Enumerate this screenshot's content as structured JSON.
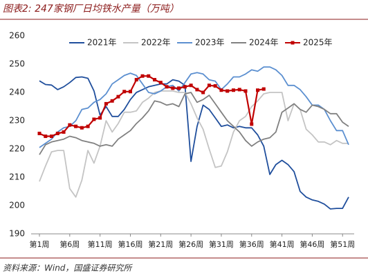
{
  "chart_data": {
    "type": "line",
    "title": "图表2: 247家钢厂日均铁水产量（万吨）",
    "source": "资料来源：Wind，国盛证券研究所",
    "categories": [
      "第1周",
      null,
      null,
      null,
      null,
      "第6周",
      null,
      null,
      null,
      null,
      "第11周",
      null,
      null,
      null,
      null,
      "第16周",
      null,
      null,
      null,
      null,
      "第21周",
      null,
      null,
      null,
      null,
      "第26周",
      null,
      null,
      null,
      null,
      "第31周",
      null,
      null,
      null,
      null,
      "第36周",
      null,
      null,
      null,
      null,
      "第41周",
      null,
      null,
      null,
      null,
      "第46周",
      null,
      null,
      null,
      null,
      "第51周",
      null
    ],
    "ylim": [
      190,
      260
    ],
    "yticks": [
      190,
      200,
      210,
      220,
      230,
      240,
      250,
      260
    ],
    "legend": "top",
    "series": [
      {
        "name": "2021年",
        "color": "#1f4e9c",
        "values": [
          244.1,
          242.8,
          242.6,
          241,
          242,
          243.5,
          245.3,
          245.5,
          245,
          240.5,
          232,
          235,
          231.5,
          231.5,
          234,
          237.5,
          240,
          241,
          242,
          242.5,
          243,
          243,
          244.5,
          244,
          242.5,
          215.6,
          228,
          235.5,
          234,
          231,
          228,
          228.5,
          227.5,
          228,
          227.5,
          227.5,
          225,
          221,
          211,
          214.5,
          216,
          214.5,
          212,
          205,
          203,
          202,
          201.5,
          200.5,
          198.8,
          199,
          199,
          203
        ]
      },
      {
        "name": "2022年",
        "color": "#c4c4c4",
        "values": [
          208.5,
          214,
          219,
          219.5,
          219.5,
          206,
          203,
          209,
          219.5,
          215,
          221,
          230,
          226,
          229,
          233,
          233,
          233.5,
          236.5,
          238,
          240,
          240.5,
          240.5,
          240.5,
          240,
          240,
          236,
          231,
          227,
          220,
          213.5,
          214,
          219,
          226,
          230,
          231.5,
          235,
          237,
          239.5,
          240,
          240,
          240,
          230,
          236,
          234,
          227,
          225,
          222.5,
          222.5,
          221.5,
          223,
          222,
          222
        ]
      },
      {
        "name": "2023年",
        "color": "#5b8fd0",
        "values": [
          220.5,
          222,
          223.5,
          226,
          227.5,
          228,
          230,
          234,
          234.5,
          236.5,
          237.5,
          239.5,
          243,
          244.5,
          246,
          246.8,
          246,
          243,
          240,
          239.5,
          240.5,
          242,
          242.5,
          240.5,
          243.5,
          246.5,
          247,
          246.5,
          244.5,
          244,
          241,
          243,
          245.5,
          245.5,
          246.5,
          248,
          247.5,
          249,
          249,
          248,
          246,
          242.5,
          242.5,
          241,
          238.5,
          235.5,
          235.5,
          234,
          230,
          226.5,
          226.5,
          221.5
        ]
      },
      {
        "name": "2024年",
        "color": "#808080",
        "values": [
          218,
          221.5,
          222.5,
          223,
          223.5,
          224.5,
          224,
          223,
          222.5,
          222,
          221,
          221.5,
          221,
          223.5,
          225,
          226.5,
          229,
          231,
          233.5,
          237,
          236.5,
          235.5,
          236,
          235,
          239.5,
          240,
          236.5,
          237.5,
          239,
          236,
          233,
          230,
          228,
          226,
          223,
          221,
          222.5,
          223.5,
          224,
          226,
          233,
          234.5,
          236,
          234,
          233,
          235.5,
          235,
          234,
          232.5,
          232.5,
          229.5,
          228
        ]
      },
      {
        "name": "2025年",
        "color": "#c00000",
        "marker": "square",
        "values": [
          225.5,
          224.5,
          224.5,
          225.5,
          226,
          228.5,
          228,
          227.5,
          228,
          230.5,
          231,
          236,
          237,
          238.5,
          240.3,
          240.3,
          244.5,
          245.8,
          245.8,
          244.5,
          243.5,
          242,
          241.5,
          241.5,
          242,
          242.5,
          241,
          240,
          242.5,
          242.3,
          240.8,
          240.5,
          240.8,
          241,
          240.5,
          228.8,
          240.8,
          241.2,
          null,
          null,
          null,
          null,
          null,
          null,
          null,
          null,
          null,
          null,
          null,
          null,
          null,
          null
        ]
      }
    ]
  }
}
